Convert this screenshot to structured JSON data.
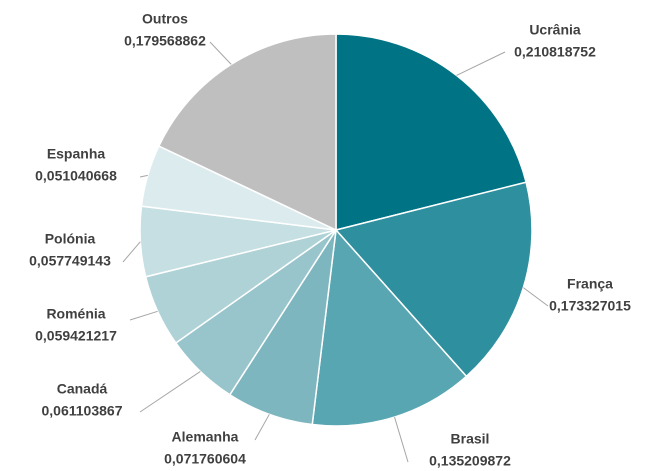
{
  "chart_data": {
    "type": "pie",
    "categories": [
      "Ucrânia",
      "França",
      "Brasil",
      "Alemanha",
      "Canadá",
      "Roménia",
      "Polónia",
      "Espanha",
      "Outros"
    ],
    "values": [
      0.210818752,
      0.173327015,
      0.135209872,
      0.071760604,
      0.061103867,
      0.059421217,
      0.057749143,
      0.051040668,
      0.179568862
    ],
    "value_labels": [
      "0,210818752",
      "0,173327015",
      "0,135209872",
      "0,071760604",
      "0,061103867",
      "0,059421217",
      "0,057749143",
      "0,051040668",
      "0,179568862"
    ],
    "colors": [
      "#007385",
      "#2e8f9e",
      "#58a6b1",
      "#7db6bf",
      "#98c5cc",
      "#afd2d7",
      "#c5dfe3",
      "#dcebee",
      "#bfbfbf"
    ]
  }
}
